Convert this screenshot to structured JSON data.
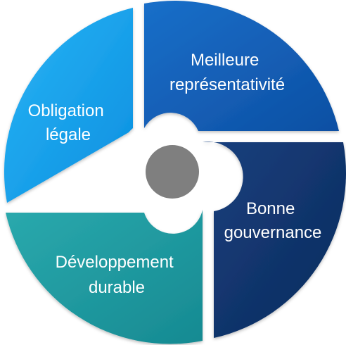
{
  "segments": [
    {
      "id": "obligation",
      "line1": "Obligation",
      "line2": "légale",
      "color_light": "#2ab4f5",
      "color_dark": "#0a8fe0"
    },
    {
      "id": "representativite",
      "line1": "Meilleure",
      "line2": "représentativité",
      "color_light": "#1a6fc9",
      "color_dark": "#0d4fa3"
    },
    {
      "id": "gouvernance",
      "line1": "Bonne",
      "line2": "gouvernance",
      "color_light": "#17407e",
      "color_dark": "#0c2a5c"
    },
    {
      "id": "developpement",
      "line1": "Développement",
      "line2": "durable",
      "color_light": "#2aa9ad",
      "color_dark": "#168a92"
    }
  ],
  "hub_color": "#7f7f7f"
}
